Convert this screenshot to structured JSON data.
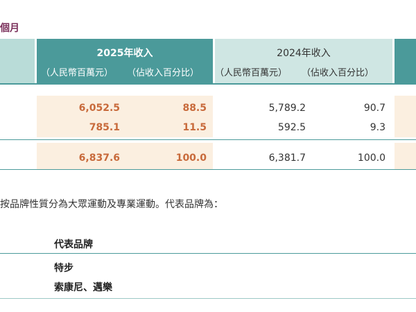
{
  "period_text": "個月",
  "header": {
    "y2025": {
      "title": "2025年收入",
      "sub_rmb": "（人民幣百萬元）",
      "sub_pct": "（佔收入百分比）"
    },
    "y2024": {
      "title": "2024年收入",
      "sub_rmb": "（人民幣百萬元）",
      "sub_pct": "（佔收入百分比）"
    }
  },
  "rows": [
    {
      "rmb_2025": "6,052.5",
      "pct_2025": "88.5",
      "rmb_2024": "5,789.2",
      "pct_2024": "90.7"
    },
    {
      "rmb_2025": "785.1",
      "pct_2025": "11.5",
      "rmb_2024": "592.5",
      "pct_2024": "9.3"
    }
  ],
  "total": {
    "rmb_2025": "6,837.6",
    "pct_2025": "100.0",
    "rmb_2024": "6,381.7",
    "pct_2024": "100.0"
  },
  "paragraph": "按品牌性質分為大眾運動及專業運動。代表品牌為：",
  "brands": {
    "header": "代表品牌",
    "items": [
      "特步",
      "索康尼、邁樂"
    ]
  },
  "colors": {
    "teal": "#4b9a9a",
    "light_teal": "#cfe6e3",
    "highlight": "#fbefe0",
    "accent_number": "#c86a3b",
    "period_color": "#7a2f5a"
  }
}
